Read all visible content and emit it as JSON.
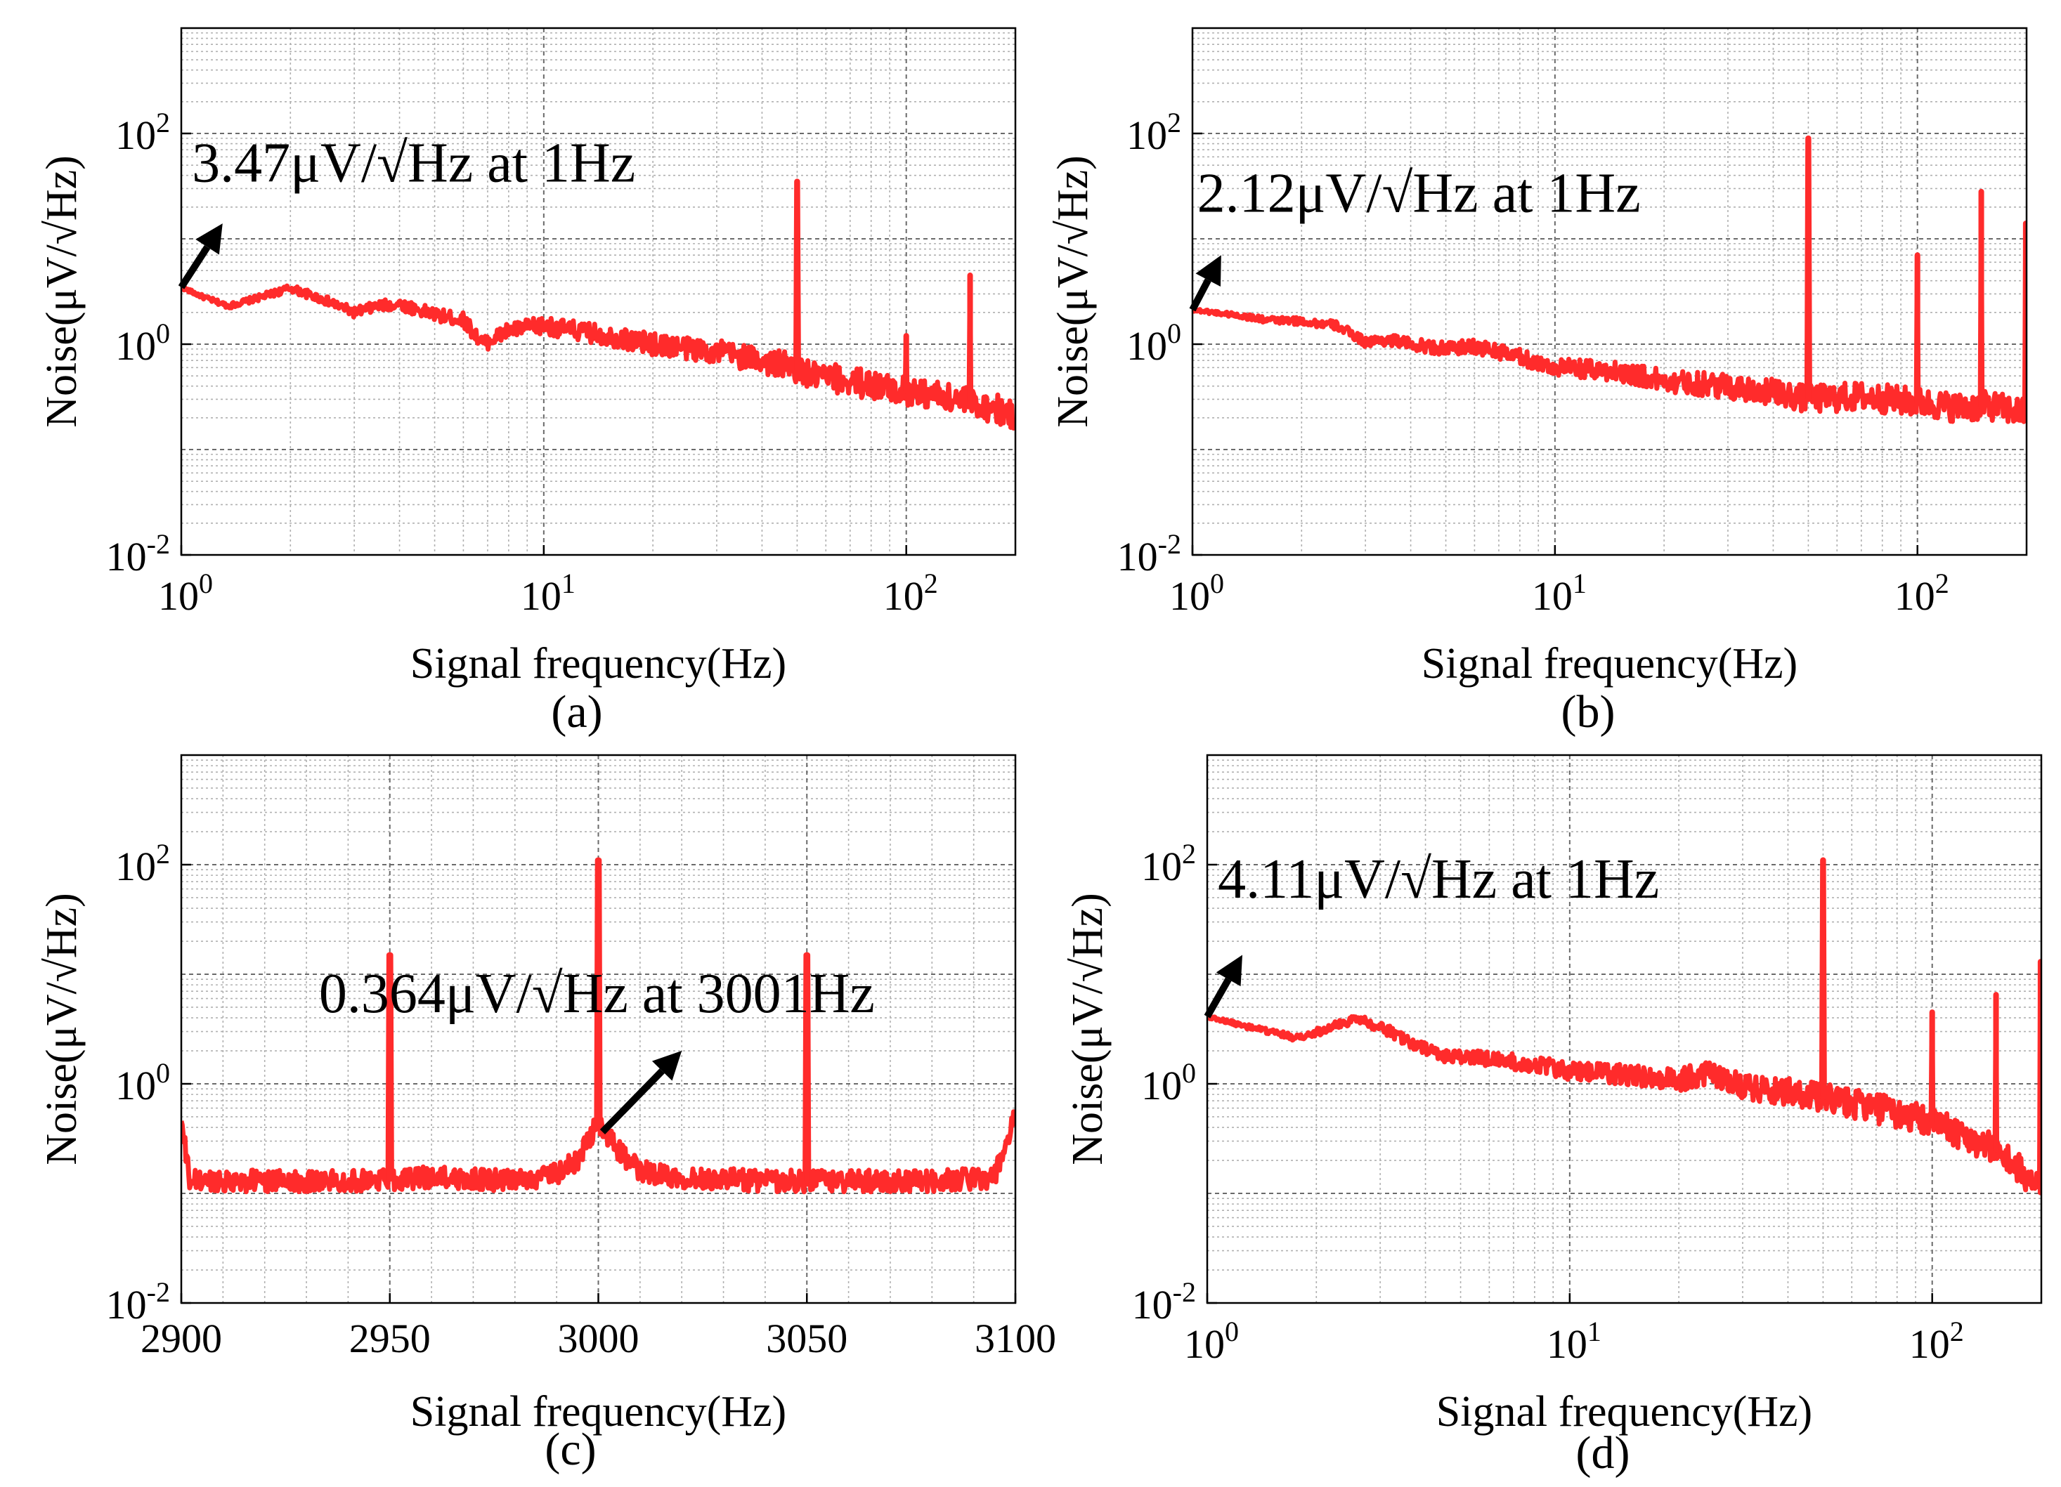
{
  "chart_data": [
    {
      "id": "a",
      "type": "line",
      "panel_label": "(a)",
      "xscale": "log",
      "yscale": "log",
      "xlim": [
        1,
        200
      ],
      "ylim": [
        0.01,
        1000
      ],
      "xticks": [
        {
          "value": 1,
          "base": "10",
          "exp": "0"
        },
        {
          "value": 10,
          "base": "10",
          "exp": "1"
        },
        {
          "value": 100,
          "base": "10",
          "exp": "2"
        }
      ],
      "yticks": [
        {
          "value": 0.01,
          "base": "10",
          "exp": "-2"
        },
        {
          "value": 1,
          "base": "10",
          "exp": "0"
        },
        {
          "value": 100,
          "base": "10",
          "exp": "2"
        }
      ],
      "xlabel": "Signal frequency(Hz)",
      "ylabel": "Noise(μV/√Hz)",
      "grid": true,
      "line_color": "#ff2b2b",
      "annotation": {
        "text": "3.47μV/√Hz at 1Hz",
        "point": [
          1,
          3.47
        ],
        "arrow_to": [
          1.3,
          14
        ],
        "text_at": [
          1.07,
          35
        ]
      },
      "series": [
        {
          "name": "noise",
          "x": [
            1,
            1.15,
            1.35,
            1.6,
            2.0,
            2.5,
            3.0,
            3.5,
            4.0,
            5.0,
            6.0,
            6.8,
            8.0,
            10,
            15,
            20,
            30,
            40,
            49,
            55,
            70,
            90,
            120,
            150,
            180,
            200
          ],
          "values": [
            3.47,
            2.8,
            2.3,
            2.7,
            3.4,
            2.6,
            2.0,
            2.3,
            2.4,
            1.9,
            1.7,
            1.0,
            1.35,
            1.5,
            1.2,
            1.0,
            0.85,
            0.7,
            0.6,
            0.5,
            0.45,
            0.38,
            0.33,
            0.28,
            0.24,
            0.2
          ]
        }
      ],
      "spikes": [
        {
          "x": 50,
          "peak": 35
        },
        {
          "x": 100,
          "peak": 1.2
        },
        {
          "x": 150,
          "peak": 4.5
        }
      ]
    },
    {
      "id": "b",
      "type": "line",
      "panel_label": "(b)",
      "xscale": "log",
      "yscale": "log",
      "xlim": [
        1,
        200
      ],
      "ylim": [
        0.01,
        1000
      ],
      "xticks": [
        {
          "value": 1,
          "base": "10",
          "exp": "0"
        },
        {
          "value": 10,
          "base": "10",
          "exp": "1"
        },
        {
          "value": 100,
          "base": "10",
          "exp": "2"
        }
      ],
      "yticks": [
        {
          "value": 0.01,
          "base": "10",
          "exp": "-2"
        },
        {
          "value": 1,
          "base": "10",
          "exp": "0"
        },
        {
          "value": 100,
          "base": "10",
          "exp": "2"
        }
      ],
      "xlabel": "Signal frequency(Hz)",
      "ylabel": "Noise(μV/√Hz)",
      "grid": true,
      "line_color": "#ff2b2b",
      "annotation": {
        "text": "2.12μV/√Hz at 1Hz",
        "point": [
          1,
          2.12
        ],
        "arrow_to": [
          1.2,
          7
        ],
        "text_at": [
          1.03,
          18
        ]
      },
      "series": [
        {
          "name": "noise",
          "x": [
            1,
            1.3,
            1.6,
            2.0,
            2.5,
            3.0,
            3.5,
            4.0,
            5.0,
            6.0,
            7.0,
            8.0,
            10,
            15,
            20,
            30,
            40,
            50,
            70,
            100,
            130,
            160,
            200
          ],
          "values": [
            2.12,
            1.9,
            1.7,
            1.65,
            1.5,
            1.05,
            1.1,
            1.0,
            0.9,
            0.95,
            0.85,
            0.75,
            0.6,
            0.55,
            0.45,
            0.4,
            0.35,
            0.3,
            0.32,
            0.28,
            0.25,
            0.26,
            0.22
          ]
        }
      ],
      "spikes": [
        {
          "x": 50,
          "peak": 90
        },
        {
          "x": 100,
          "peak": 7
        },
        {
          "x": 150,
          "peak": 28
        },
        {
          "x": 199,
          "peak": 14
        }
      ]
    },
    {
      "id": "c",
      "type": "line",
      "panel_label": "(c)",
      "xscale": "linear",
      "yscale": "log",
      "xlim": [
        2900,
        3100
      ],
      "ylim": [
        0.01,
        1000
      ],
      "xticks": [
        {
          "value": 2900,
          "label": "2900"
        },
        {
          "value": 2950,
          "label": "2950"
        },
        {
          "value": 3000,
          "label": "3000"
        },
        {
          "value": 3050,
          "label": "3050"
        },
        {
          "value": 3100,
          "label": "3100"
        }
      ],
      "yticks": [
        {
          "value": 0.01,
          "base": "10",
          "exp": "-2"
        },
        {
          "value": 1,
          "base": "10",
          "exp": "0"
        },
        {
          "value": 100,
          "base": "10",
          "exp": "2"
        }
      ],
      "xlabel": "Signal frequency(Hz)",
      "ylabel": "Noise(μV/√Hz)",
      "grid": true,
      "line_color": "#ff2b2b",
      "annotation": {
        "text": "0.364μV/√Hz at 3001Hz",
        "point": [
          3001,
          0.364
        ],
        "arrow_to": [
          3020,
          2.0
        ],
        "text_at": [
          2933,
          4.5
        ]
      },
      "series": [
        {
          "name": "noise",
          "x": [
            2900,
            2902,
            2920,
            2940,
            2960,
            2980,
            2990,
            2995,
            2998,
            3000,
            3001,
            3003,
            3006,
            3010,
            3020,
            3040,
            3060,
            3080,
            3095,
            3098,
            3100
          ],
          "values": [
            0.45,
            0.13,
            0.13,
            0.13,
            0.14,
            0.13,
            0.15,
            0.2,
            0.33,
            0.45,
            0.364,
            0.3,
            0.22,
            0.16,
            0.14,
            0.13,
            0.13,
            0.13,
            0.14,
            0.3,
            0.5
          ]
        }
      ],
      "spikes": [
        {
          "x": 2950,
          "peak": 15
        },
        {
          "x": 3000,
          "peak": 110
        },
        {
          "x": 3050,
          "peak": 15
        }
      ]
    },
    {
      "id": "d",
      "type": "line",
      "panel_label": "(d)",
      "xscale": "log",
      "yscale": "log",
      "xlim": [
        1,
        200
      ],
      "ylim": [
        0.01,
        1000
      ],
      "xticks": [
        {
          "value": 1,
          "base": "10",
          "exp": "0"
        },
        {
          "value": 10,
          "base": "10",
          "exp": "1"
        },
        {
          "value": 100,
          "base": "10",
          "exp": "2"
        }
      ],
      "yticks": [
        {
          "value": 0.01,
          "base": "10",
          "exp": "-2"
        },
        {
          "value": 1,
          "base": "10",
          "exp": "0"
        },
        {
          "value": 100,
          "base": "10",
          "exp": "2"
        }
      ],
      "xlabel": "Signal frequency(Hz)",
      "ylabel": "Noise(μV/√Hz)",
      "grid": true,
      "line_color": "#ff2b2b",
      "annotation": {
        "text": "4.11μV/√Hz at 1Hz",
        "point": [
          1,
          4.11
        ],
        "arrow_to": [
          1.25,
          15
        ],
        "text_at": [
          1.07,
          50
        ]
      },
      "series": [
        {
          "name": "noise",
          "x": [
            1,
            1.3,
            1.8,
            2.2,
            2.6,
            3.2,
            3.8,
            4.5,
            6,
            8,
            10,
            15,
            20,
            25,
            30,
            40,
            50,
            70,
            100,
            120,
            150,
            180,
            200
          ],
          "values": [
            4.11,
            3.3,
            2.6,
            3.3,
            4.0,
            3.0,
            2.2,
            1.8,
            1.7,
            1.5,
            1.3,
            1.2,
            1.1,
            1.25,
            0.95,
            0.85,
            0.75,
            0.6,
            0.45,
            0.35,
            0.25,
            0.15,
            0.1
          ]
        }
      ],
      "spikes": [
        {
          "x": 50,
          "peak": 110
        },
        {
          "x": 100,
          "peak": 4.5
        },
        {
          "x": 150,
          "peak": 6.5
        },
        {
          "x": 199,
          "peak": 13
        }
      ]
    }
  ]
}
